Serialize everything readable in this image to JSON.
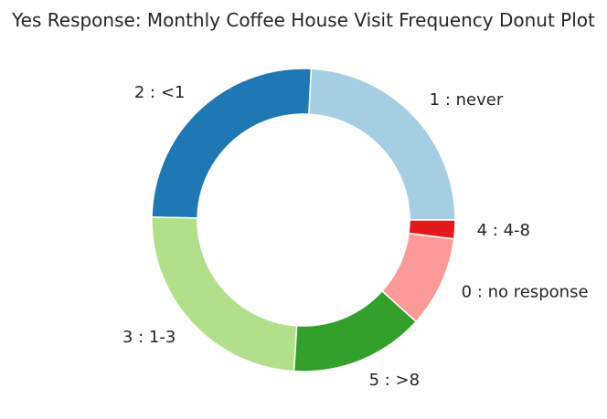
{
  "chart_data": {
    "type": "pie",
    "variant": "donut",
    "title": "Yes Response: Monthly Coffee House Visit Frequency Donut Plot",
    "start_angle_deg": 0,
    "direction": "counterclockwise",
    "slices": [
      {
        "label": "1 : never",
        "value": 24.2,
        "color": "#a6cee3"
      },
      {
        "label": "2 : <1",
        "value": 25.5,
        "color": "#1f78b4"
      },
      {
        "label": "3 : 1-3",
        "value": 24.3,
        "color": "#b2df8a"
      },
      {
        "label": "5 : >8",
        "value": 14.3,
        "color": "#33a02c"
      },
      {
        "label": "0 : no response",
        "value": 9.7,
        "color": "#fb9a99"
      },
      {
        "label": "4 : 4-8",
        "value": 2.0,
        "color": "#e31a1c"
      }
    ]
  }
}
